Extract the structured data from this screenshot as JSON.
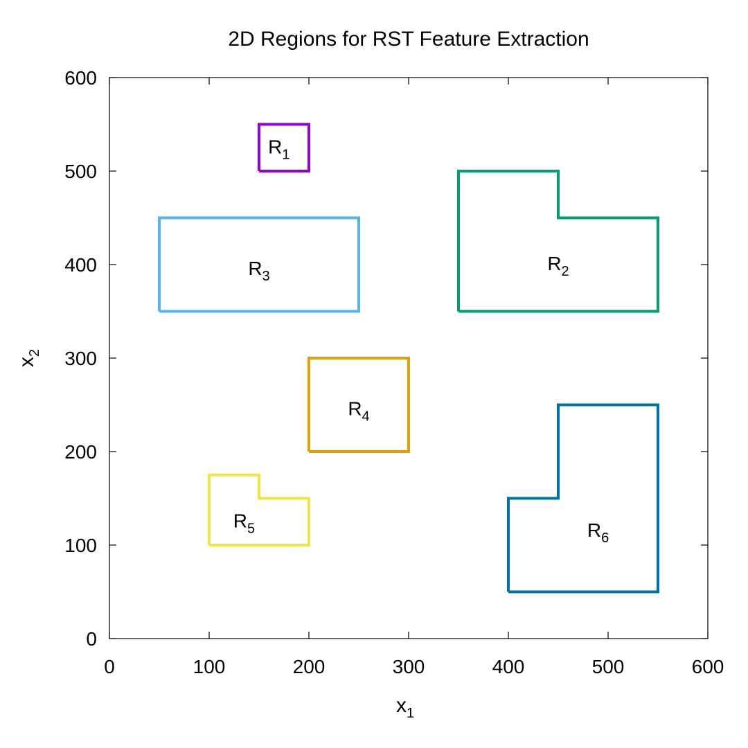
{
  "chart_data": {
    "type": "line",
    "title": "2D Regions for RST Feature Extraction",
    "xlabel": {
      "base": "x",
      "sub": "1"
    },
    "ylabel": {
      "base": "x",
      "sub": "2"
    },
    "xlim": [
      0,
      600
    ],
    "ylim": [
      0,
      600
    ],
    "xticks": [
      0,
      100,
      200,
      300,
      400,
      500,
      600
    ],
    "yticks": [
      0,
      100,
      200,
      300,
      400,
      500,
      600
    ],
    "grid": false,
    "legend": "none",
    "series": [
      {
        "name": "R1",
        "label_base": "R",
        "label_sub": "1",
        "color": "#9400D3",
        "points": [
          [
            150,
            500
          ],
          [
            150,
            550
          ],
          [
            200,
            550
          ],
          [
            200,
            500
          ],
          [
            150,
            500
          ]
        ],
        "label_pos": [
          170,
          525
        ]
      },
      {
        "name": "R2",
        "label_base": "R",
        "label_sub": "2",
        "color": "#009E73",
        "points": [
          [
            350,
            350
          ],
          [
            350,
            500
          ],
          [
            450,
            500
          ],
          [
            450,
            450
          ],
          [
            550,
            450
          ],
          [
            550,
            350
          ],
          [
            350,
            350
          ]
        ],
        "label_pos": [
          450,
          400
        ]
      },
      {
        "name": "R3",
        "label_base": "R",
        "label_sub": "3",
        "color": "#56B4E9",
        "points": [
          [
            50,
            350
          ],
          [
            50,
            450
          ],
          [
            250,
            450
          ],
          [
            250,
            350
          ],
          [
            50,
            350
          ]
        ],
        "label_pos": [
          150,
          395
        ]
      },
      {
        "name": "R4",
        "label_base": "R",
        "label_sub": "4",
        "color": "#E69F00",
        "points": [
          [
            200,
            200
          ],
          [
            200,
            300
          ],
          [
            300,
            300
          ],
          [
            300,
            200
          ],
          [
            200,
            200
          ]
        ],
        "label_pos": [
          250,
          245
        ]
      },
      {
        "name": "R5",
        "label_base": "R",
        "label_sub": "5",
        "color": "#F0E442",
        "points": [
          [
            100,
            100
          ],
          [
            100,
            175
          ],
          [
            150,
            175
          ],
          [
            150,
            150
          ],
          [
            200,
            150
          ],
          [
            200,
            100
          ],
          [
            100,
            100
          ]
        ],
        "label_pos": [
          135,
          125
        ]
      },
      {
        "name": "R6",
        "label_base": "R",
        "label_sub": "6",
        "color": "#0072B2",
        "points": [
          [
            400,
            50
          ],
          [
            400,
            150
          ],
          [
            450,
            150
          ],
          [
            450,
            250
          ],
          [
            550,
            250
          ],
          [
            550,
            50
          ],
          [
            400,
            50
          ]
        ],
        "label_pos": [
          490,
          115
        ]
      }
    ]
  }
}
